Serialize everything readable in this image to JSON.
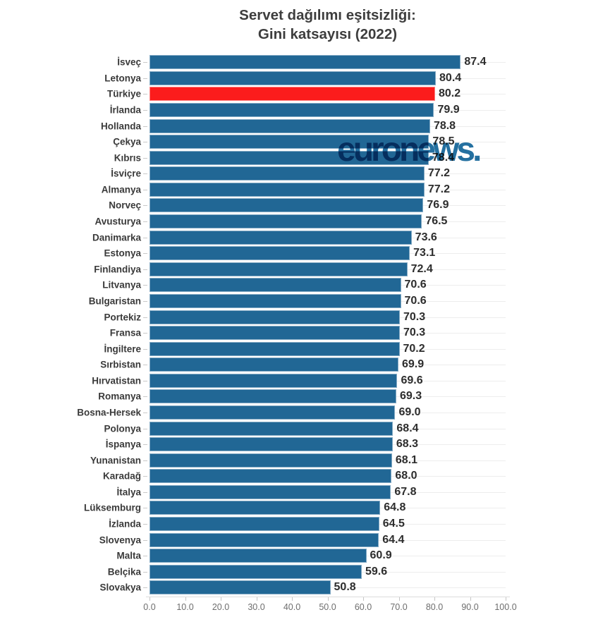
{
  "title": {
    "line1": "Servet dağılımı eşitsizliği:",
    "line2": "Gini katsayısı (2022)"
  },
  "watermark": {
    "text": "euronews.",
    "color": "#18689b"
  },
  "chart_data": {
    "type": "bar",
    "orientation": "horizontal",
    "title": "Servet dağılımı eşitsizliği: Gini katsayısı (2022)",
    "categories": [
      "İsveç",
      "Letonya",
      "Türkiye",
      "İrlanda",
      "Hollanda",
      "Çekya",
      "Kıbrıs",
      "İsviçre",
      "Almanya",
      "Norveç",
      "Avusturya",
      "Danimarka",
      "Estonya",
      "Finlandiya",
      "Litvanya",
      "Bulgaristan",
      "Portekiz",
      "Fransa",
      "İngiltere",
      "Sırbistan",
      "Hırvatistan",
      "Romanya",
      "Bosna-Hersek",
      "Polonya",
      "İspanya",
      "Yunanistan",
      "Karadağ",
      "İtalya",
      "Lüksemburg",
      "İzlanda",
      "Slovenya",
      "Malta",
      "Belçika",
      "Slovakya"
    ],
    "values": [
      87.4,
      80.4,
      80.2,
      79.9,
      78.8,
      78.5,
      78.4,
      77.2,
      77.2,
      76.9,
      76.5,
      73.6,
      73.1,
      72.4,
      70.6,
      70.6,
      70.3,
      70.3,
      70.2,
      69.9,
      69.6,
      69.3,
      69.0,
      68.4,
      68.3,
      68.1,
      68.0,
      67.8,
      64.8,
      64.5,
      64.4,
      60.9,
      59.6,
      50.8
    ],
    "highlight_category": "Türkiye",
    "bar_color": "#216795",
    "highlight_color": "#fb1c1c",
    "xlabel": "",
    "ylabel": "",
    "xlim": [
      0.0,
      100.0
    ],
    "x_ticks": [
      "0.0",
      "10.0",
      "20.0",
      "30.0",
      "40.0",
      "50.0",
      "60.0",
      "70.0",
      "80.0",
      "90.0",
      "100.0"
    ],
    "grid": "light horizontal row gridlines",
    "legend": "none",
    "value_labels": "shown at end of each bar, one decimal"
  }
}
